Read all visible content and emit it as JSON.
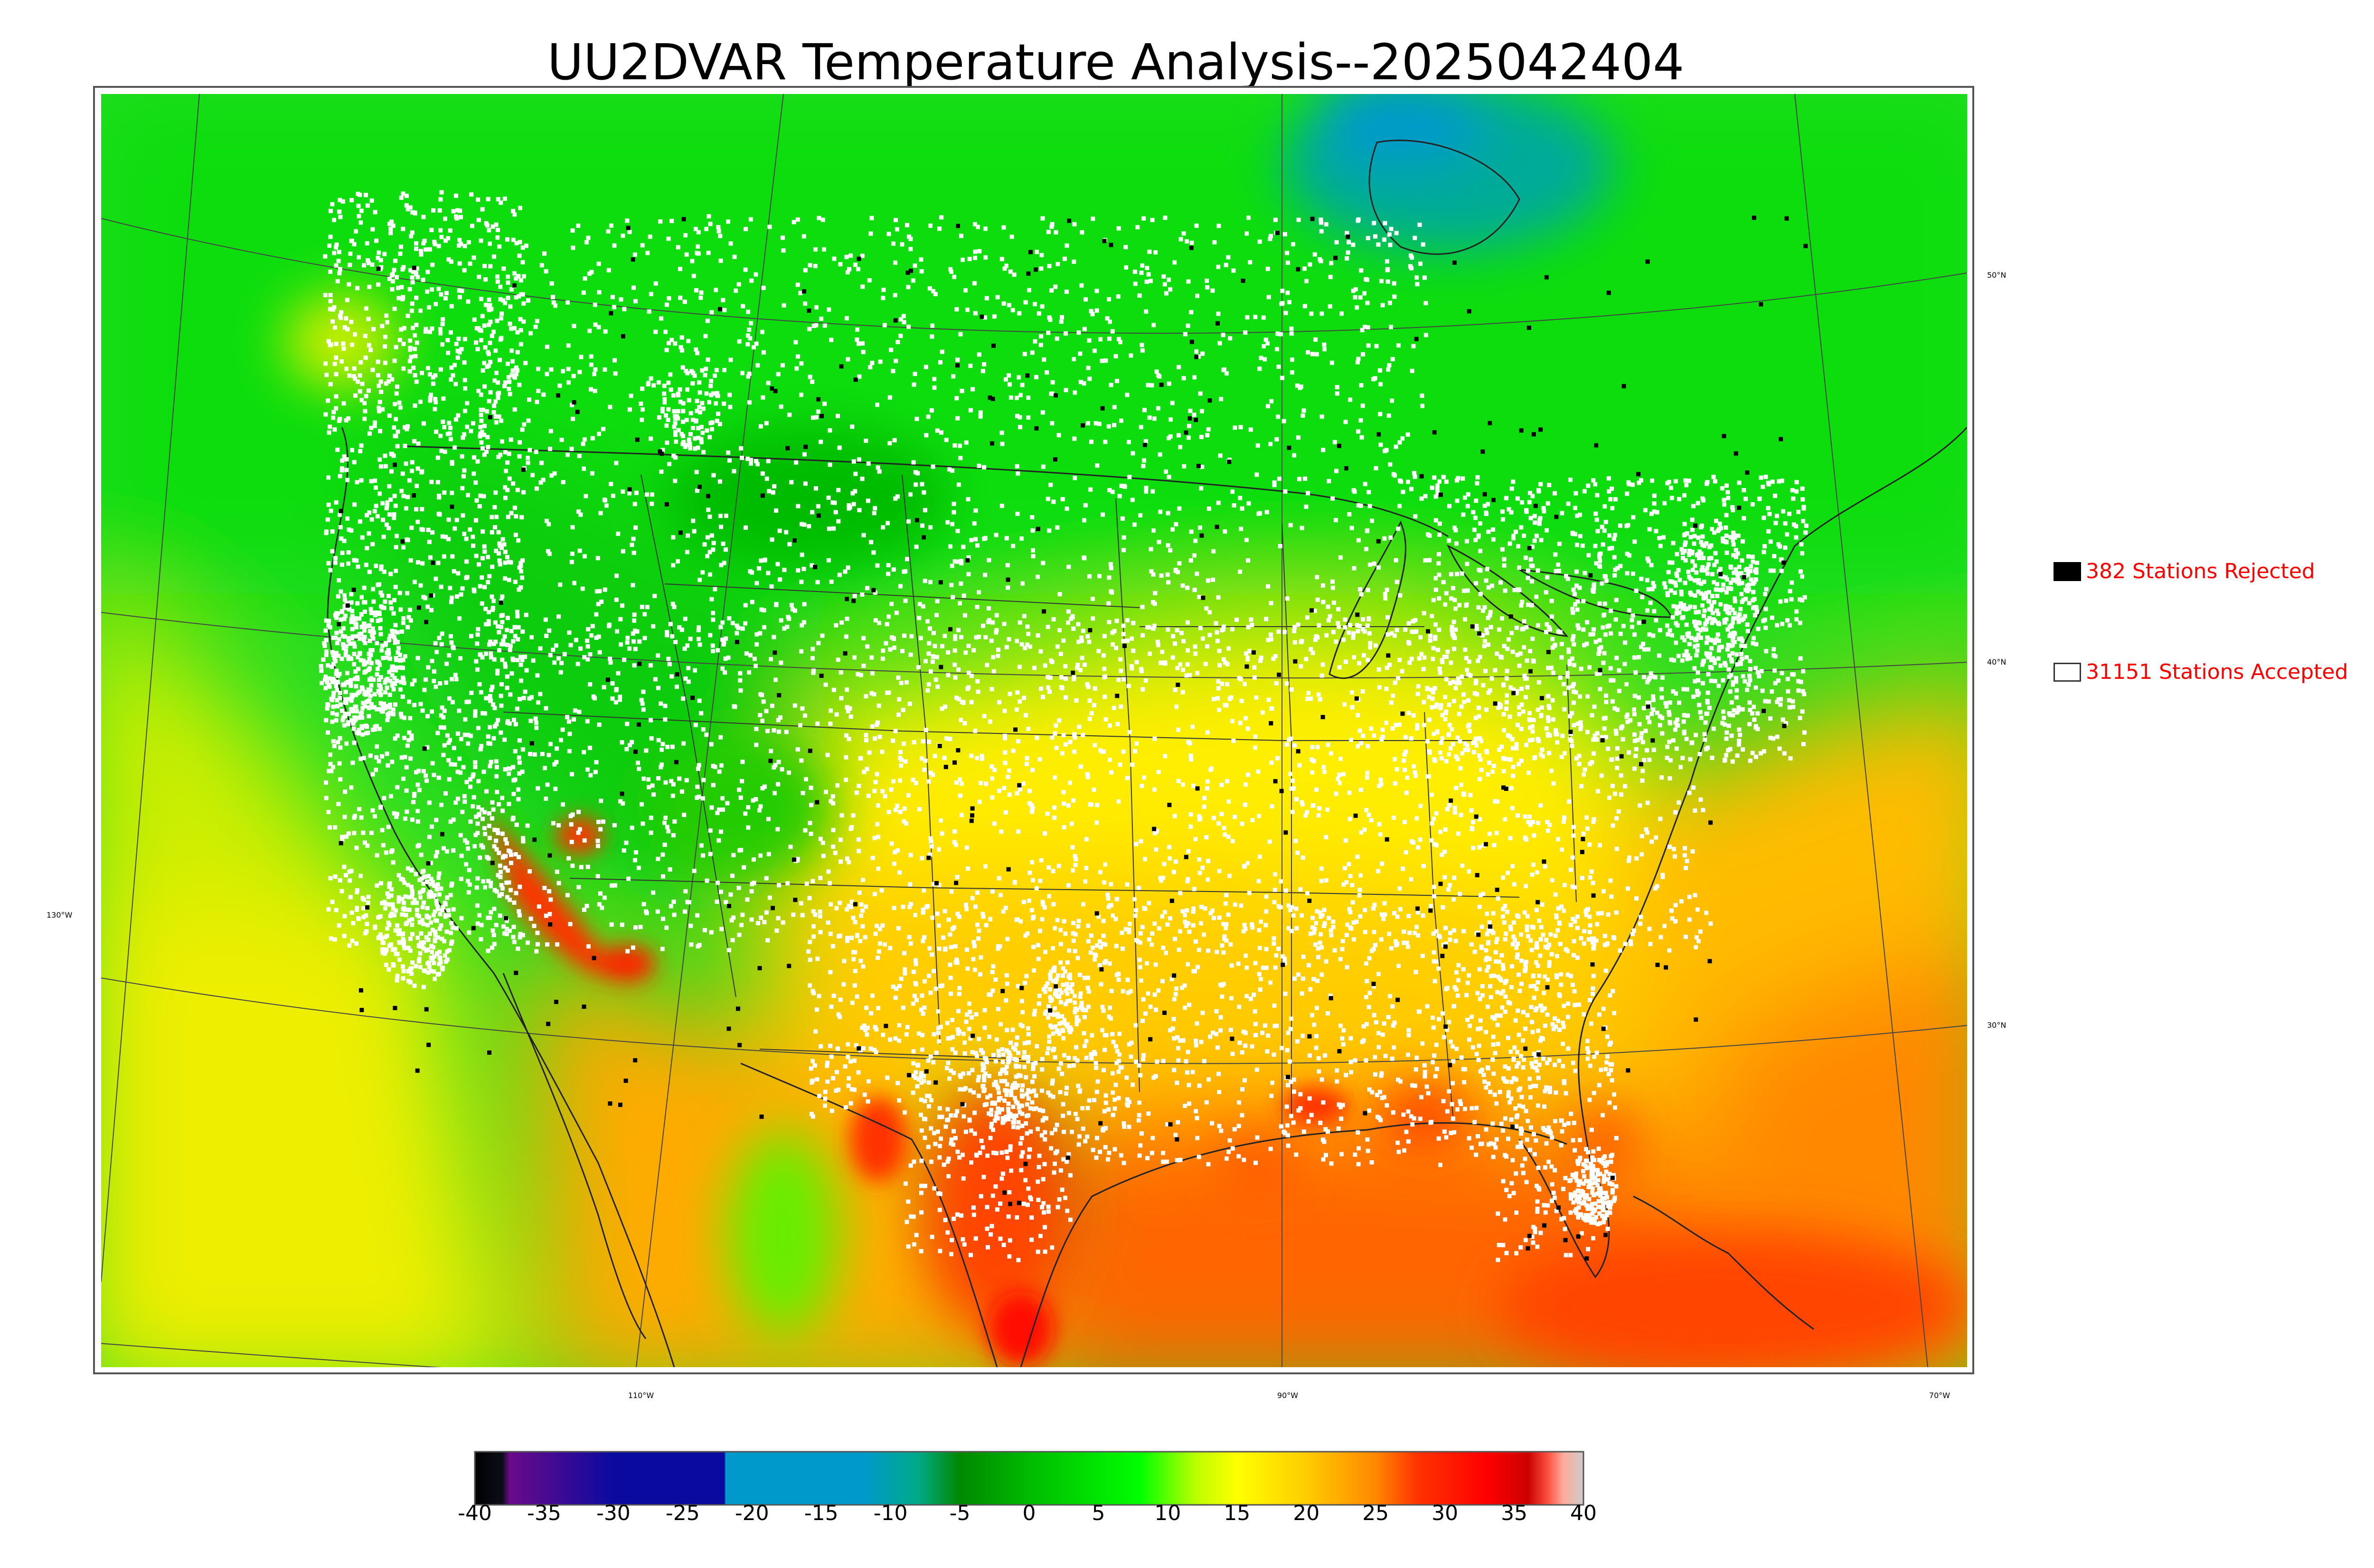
{
  "title": "UU2DVAR Temperature Analysis--2025042404",
  "legend": {
    "rejected": {
      "label": "382 Stations Rejected",
      "swatch_color": "#000000"
    },
    "accepted": {
      "label": "31151 Stations Accepted",
      "swatch_color": "#ffffff"
    }
  },
  "lat_labels": [
    "50°N",
    "40°N",
    "30°N"
  ],
  "lon_labels": [
    "130°W",
    "110°W",
    "90°W",
    "70°W"
  ],
  "colorbar": {
    "ticks": [
      "-40",
      "-35",
      "-30",
      "-25",
      "-20",
      "-15",
      "-10",
      "-5",
      "0",
      "5",
      "10",
      "15",
      "20",
      "25",
      "30",
      "35",
      "40"
    ],
    "stops": [
      {
        "v": -40,
        "color": "#000000"
      },
      {
        "v": -38,
        "color": "#0d0d1a"
      },
      {
        "v": -37.5,
        "color": "#6a0a8a"
      },
      {
        "v": -30,
        "color": "#0a0aa0"
      },
      {
        "v": -22,
        "color": "#0a0aa0"
      },
      {
        "v": -21.9,
        "color": "#0099cc"
      },
      {
        "v": -12,
        "color": "#0099cc"
      },
      {
        "v": -8,
        "color": "#00aa88"
      },
      {
        "v": -5,
        "color": "#008800"
      },
      {
        "v": 0,
        "color": "#00bb00"
      },
      {
        "v": 8,
        "color": "#00ff00"
      },
      {
        "v": 12,
        "color": "#bbff00"
      },
      {
        "v": 15,
        "color": "#ffff00"
      },
      {
        "v": 20,
        "color": "#ffcc00"
      },
      {
        "v": 25,
        "color": "#ff8800"
      },
      {
        "v": 28,
        "color": "#ff3300"
      },
      {
        "v": 33,
        "color": "#ff0000"
      },
      {
        "v": 36,
        "color": "#cc0000"
      },
      {
        "v": 37.5,
        "color": "#ff5544"
      },
      {
        "v": 38.5,
        "color": "#ffaa99"
      },
      {
        "v": 40,
        "color": "#cccccc"
      }
    ]
  },
  "colors": {
    "green": "#11dd11",
    "yellow": "#ffee00",
    "orange": "#ff9900",
    "red": "#ff2200",
    "teal": "#00aa88",
    "station_accepted": "#ffffff",
    "station_rejected": "#000000"
  }
}
